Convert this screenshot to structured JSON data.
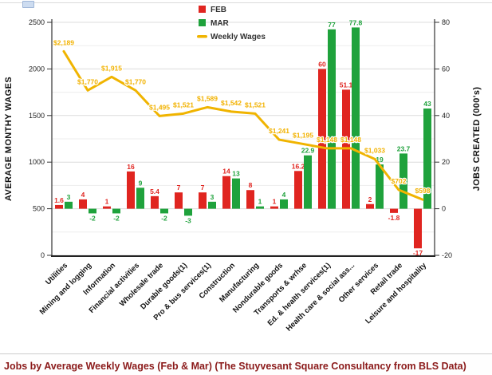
{
  "page": {
    "caption": "Jobs by Average Weekly Wages (Feb & Mar) (The Stuyvesant Square Consultancy from BLS Data)"
  },
  "chart_data": {
    "type": "bar",
    "subtype": "grouped-bars-with-line",
    "title": "",
    "grid": true,
    "legend_position": "top",
    "categories": [
      "Utilities",
      "Mining and logging",
      "Information",
      "Financial activities",
      "Wholesale trade",
      "Durable goods(1)",
      "Pro & bus services(1)",
      "Construction",
      "Manufacturing",
      "Nondurable goods",
      "Transports & wrhse",
      "Ed. & health services(1)",
      "Health care & social ass...",
      "Other services",
      "Retail trade",
      "Leisure and hospitality"
    ],
    "series": [
      {
        "name": "FEB",
        "type": "bar",
        "axis": "right",
        "color": "#E02520",
        "values": [
          1.6,
          4,
          1,
          16,
          5.4,
          7,
          7,
          14,
          8,
          1,
          16.2,
          60,
          51.1,
          2,
          -1.8,
          -17
        ]
      },
      {
        "name": "MAR",
        "type": "bar",
        "axis": "right",
        "color": "#1FA23C",
        "values": [
          3,
          -2,
          -2,
          9,
          -2,
          -3,
          3,
          13,
          1,
          4,
          22.9,
          77,
          77.8,
          19,
          23.7,
          43
        ]
      },
      {
        "name": "Weekly Wages",
        "type": "line",
        "axis": "left",
        "color": "#F0B400",
        "values": [
          2189,
          1770,
          1915,
          1770,
          1495,
          1521,
          1589,
          1542,
          1521,
          1241,
          1195,
          1148,
          1148,
          1033,
          702,
          598
        ],
        "labels": [
          "$2,189",
          "$1,770",
          "$1,915",
          "$1,770",
          "$1,495",
          "$1,521",
          "$1,589",
          "$1,542",
          "$1,521",
          "$1,241",
          "$1,195",
          "$1,148",
          "$1,148",
          "$1,033",
          "$702",
          "$598"
        ]
      }
    ],
    "left_axis": {
      "title": "AVERAGE MONTHY WAGES",
      "min": 0,
      "max": 2500,
      "step": 500,
      "ticks": [
        "0",
        "500",
        "1000",
        "1500",
        "2000",
        "2500"
      ]
    },
    "right_axis": {
      "title": "JOBS CREATED (000's)",
      "min": -20,
      "max": 80,
      "step": 20,
      "ticks": [
        "-20",
        "0",
        "20",
        "40",
        "60",
        "80"
      ]
    },
    "colors": {
      "grid_major": "#dcdcdc",
      "grid_minor": "#ededed",
      "axis": "#333333",
      "wage_label": "#F2B200",
      "caption": "#8B1A1A"
    }
  }
}
